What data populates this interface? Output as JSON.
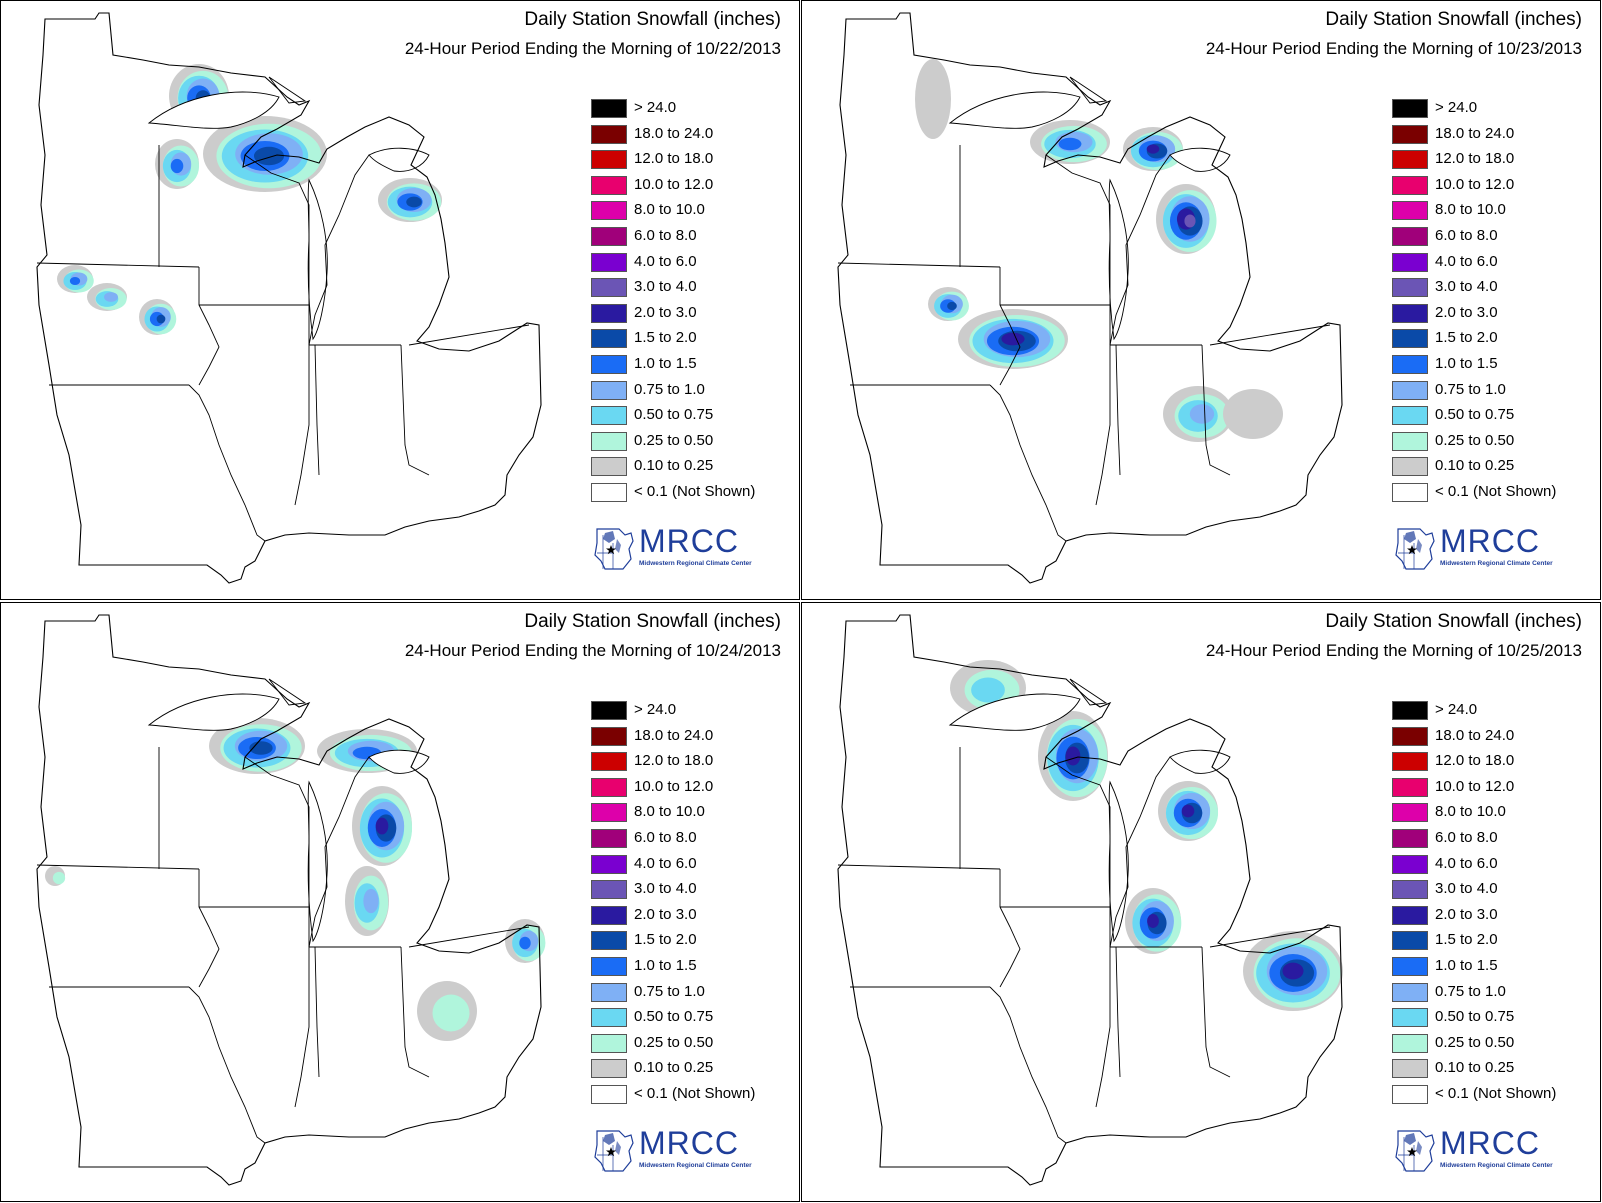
{
  "panels": [
    {
      "title": "Daily Station Snowfall (inches)",
      "subtitle": "24-Hour Period Ending the Morning of 10/22/2013",
      "snow_areas": [
        {
          "region": "northeast Minnesota",
          "cx": 192,
          "cy": 92,
          "rx": 30,
          "ry": 32,
          "max_category": "1.5 to 2.0"
        },
        {
          "region": "western Upper Peninsula / northern Wisconsin",
          "cx": 258,
          "cy": 150,
          "rx": 62,
          "ry": 38,
          "max_category": "1.5 to 2.0"
        },
        {
          "region": "northwest Wisconsin",
          "cx": 170,
          "cy": 160,
          "rx": 22,
          "ry": 25,
          "max_category": "1.0 to 1.5"
        },
        {
          "region": "northern Lower Michigan",
          "cx": 403,
          "cy": 196,
          "rx": 32,
          "ry": 22,
          "max_category": "1.5 to 2.0"
        },
        {
          "region": "southwest Minnesota",
          "cx": 68,
          "cy": 275,
          "rx": 18,
          "ry": 14,
          "max_category": "1.0 to 1.5"
        },
        {
          "region": "southern Minnesota",
          "cx": 100,
          "cy": 293,
          "rx": 20,
          "ry": 14,
          "max_category": "0.75 to 1.0"
        },
        {
          "region": "southern Minnesota east",
          "cx": 150,
          "cy": 313,
          "rx": 18,
          "ry": 18,
          "max_category": "1.5 to 2.0"
        }
      ]
    },
    {
      "title": "Daily Station Snowfall (inches)",
      "subtitle": "24-Hour Period Ending the Morning of 10/23/2013",
      "snow_areas": [
        {
          "region": "western Upper Peninsula",
          "cx": 262,
          "cy": 138,
          "rx": 40,
          "ry": 22,
          "max_category": "1.0 to 1.5"
        },
        {
          "region": "central Upper Peninsula",
          "cx": 345,
          "cy": 145,
          "rx": 30,
          "ry": 22,
          "max_category": "2.0 to 3.0"
        },
        {
          "region": "northern Lower Michigan",
          "cx": 378,
          "cy": 215,
          "rx": 30,
          "ry": 35,
          "max_category": "3.0 to 4.0"
        },
        {
          "region": "southern Minnesota / northern Iowa",
          "cx": 205,
          "cy": 335,
          "rx": 55,
          "ry": 30,
          "max_category": "2.0 to 3.0"
        },
        {
          "region": "southwest Minnesota",
          "cx": 140,
          "cy": 300,
          "rx": 20,
          "ry": 17,
          "max_category": "1.5 to 2.0"
        },
        {
          "region": "central Indiana",
          "cx": 390,
          "cy": 410,
          "rx": 35,
          "ry": 28,
          "max_category": "0.75 to 1.0"
        },
        {
          "region": "western Ohio",
          "cx": 445,
          "cy": 410,
          "rx": 30,
          "ry": 25,
          "max_category": "0.10 to 0.25"
        },
        {
          "region": "northern Minnesota",
          "cx": 125,
          "cy": 95,
          "rx": 18,
          "ry": 40,
          "max_category": "0.10 to 0.25"
        }
      ]
    },
    {
      "title": "Daily Station Snowfall (inches)",
      "subtitle": "24-Hour Period Ending the Morning of 10/24/2013",
      "snow_areas": [
        {
          "region": "western Upper Peninsula",
          "cx": 250,
          "cy": 140,
          "rx": 48,
          "ry": 28,
          "max_category": "1.5 to 2.0"
        },
        {
          "region": "central Upper Peninsula",
          "cx": 360,
          "cy": 145,
          "rx": 50,
          "ry": 22,
          "max_category": "1.0 to 1.5"
        },
        {
          "region": "northwest Lower Michigan",
          "cx": 375,
          "cy": 220,
          "rx": 30,
          "ry": 40,
          "max_category": "2.0 to 3.0"
        },
        {
          "region": "southwest Lower Michigan",
          "cx": 360,
          "cy": 295,
          "rx": 22,
          "ry": 35,
          "max_category": "0.75 to 1.0"
        },
        {
          "region": "northeast Ohio",
          "cx": 518,
          "cy": 335,
          "rx": 20,
          "ry": 22,
          "max_category": "1.0 to 1.5"
        },
        {
          "region": "southwest Ohio",
          "cx": 440,
          "cy": 405,
          "rx": 30,
          "ry": 30,
          "max_category": "0.25 to 0.50"
        },
        {
          "region": "southeast South Dakota",
          "cx": 48,
          "cy": 270,
          "rx": 10,
          "ry": 10,
          "max_category": "0.25 to 0.50"
        }
      ]
    },
    {
      "title": "Daily Station Snowfall (inches)",
      "subtitle": "24-Hour Period Ending the Morning of 10/25/2013",
      "snow_areas": [
        {
          "region": "northeast Minnesota",
          "cx": 180,
          "cy": 82,
          "rx": 38,
          "ry": 28,
          "max_category": "0.50 to 0.75"
        },
        {
          "region": "western Upper Peninsula / northern Wisconsin",
          "cx": 265,
          "cy": 150,
          "rx": 35,
          "ry": 45,
          "max_category": "2.0 to 3.0"
        },
        {
          "region": "northern Lower Michigan",
          "cx": 380,
          "cy": 205,
          "rx": 30,
          "ry": 30,
          "max_category": "2.0 to 3.0"
        },
        {
          "region": "southwest Michigan / northwest Indiana",
          "cx": 345,
          "cy": 315,
          "rx": 28,
          "ry": 33,
          "max_category": "2.0 to 3.0"
        },
        {
          "region": "northern Ohio",
          "cx": 485,
          "cy": 365,
          "rx": 50,
          "ry": 40,
          "max_category": "2.0 to 3.0"
        }
      ]
    }
  ],
  "legend": [
    {
      "label": "> 24.0",
      "color": "#000000"
    },
    {
      "label": "18.0 to 24.0",
      "color": "#7a0000"
    },
    {
      "label": "12.0 to 18.0",
      "color": "#cc0000"
    },
    {
      "label": "10.0 to 12.0",
      "color": "#e8006e"
    },
    {
      "label": "8.0 to 10.0",
      "color": "#dd00aa"
    },
    {
      "label": "6.0 to 8.0",
      "color": "#a0007a"
    },
    {
      "label": "4.0 to 6.0",
      "color": "#7a00d0"
    },
    {
      "label": "3.0 to 4.0",
      "color": "#6b55b5"
    },
    {
      "label": "2.0 to 3.0",
      "color": "#2a1aa0"
    },
    {
      "label": "1.5 to 2.0",
      "color": "#0a4aa8"
    },
    {
      "label": "1.0 to 1.5",
      "color": "#1a6cf5"
    },
    {
      "label": "0.75 to 1.0",
      "color": "#7fb0f5"
    },
    {
      "label": "0.50 to 0.75",
      "color": "#6ad8f2"
    },
    {
      "label": "0.25 to 0.50",
      "color": "#b0f5dc"
    },
    {
      "label": "0.10 to 0.25",
      "color": "#cccccc"
    },
    {
      "label": "< 0.1 (Not Shown)",
      "color": "#ffffff"
    }
  ],
  "logo": {
    "name": "MRCC",
    "subtitle": "Midwestern Regional Climate Center"
  }
}
